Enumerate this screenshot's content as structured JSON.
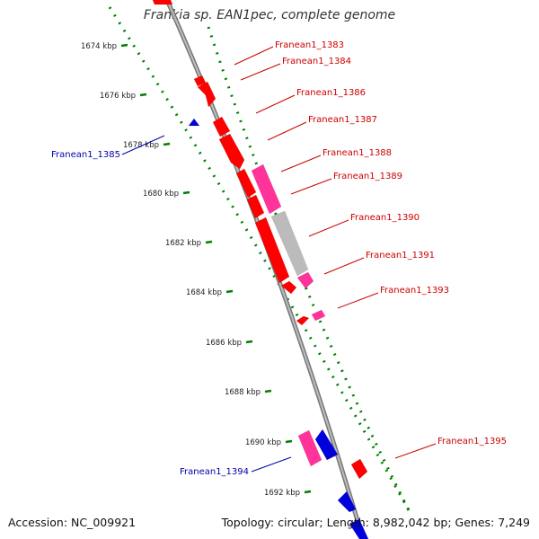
{
  "title": "Frankia sp. EAN1pec, complete genome",
  "footer": {
    "accession": "Accession: NC_009921",
    "topology": "Topology: circular; Length: 8,982,042 bp; Genes: 7,249"
  },
  "colors": {
    "forward_gene": "#ff0000",
    "reverse_gene": "#0000dd",
    "rna_or_other_pink": "#ff3399",
    "pseudo_grey": "#bbbbbb",
    "backbone": "#888888",
    "tick_green": "#008000",
    "label_red": "#cc0000",
    "label_blue": "#0000aa"
  },
  "ticks": [
    {
      "label": "1674 kbp",
      "kbp": 1674
    },
    {
      "label": "1676 kbp",
      "kbp": 1676
    },
    {
      "label": "1678 kbp",
      "kbp": 1678
    },
    {
      "label": "1680 kbp",
      "kbp": 1680
    },
    {
      "label": "1682 kbp",
      "kbp": 1682
    },
    {
      "label": "1684 kbp",
      "kbp": 1684
    },
    {
      "label": "1686 kbp",
      "kbp": 1686
    },
    {
      "label": "1688 kbp",
      "kbp": 1688
    },
    {
      "label": "1690 kbp",
      "kbp": 1690
    },
    {
      "label": "1692 kbp",
      "kbp": 1692
    }
  ],
  "gene_labels": [
    {
      "name": "Franean1_1383",
      "strand": "forward"
    },
    {
      "name": "Franean1_1384",
      "strand": "forward"
    },
    {
      "name": "Franean1_1386",
      "strand": "forward"
    },
    {
      "name": "Franean1_1387",
      "strand": "forward"
    },
    {
      "name": "Franean1_1388",
      "strand": "forward"
    },
    {
      "name": "Franean1_1389",
      "strand": "forward"
    },
    {
      "name": "Franean1_1390",
      "strand": "forward"
    },
    {
      "name": "Franean1_1391",
      "strand": "forward"
    },
    {
      "name": "Franean1_1393",
      "strand": "forward"
    },
    {
      "name": "Franean1_1395",
      "strand": "forward"
    },
    {
      "name": "Franean1_1385",
      "strand": "reverse"
    },
    {
      "name": "Franean1_1394",
      "strand": "reverse"
    }
  ]
}
